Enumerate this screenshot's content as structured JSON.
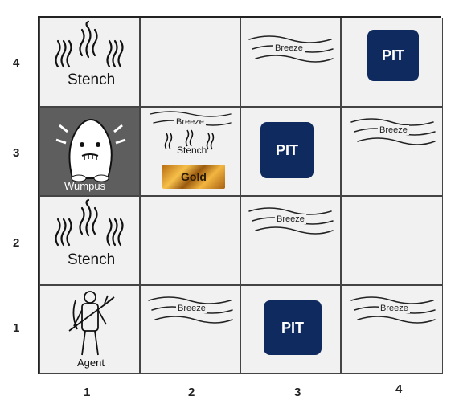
{
  "axes": {
    "rows": [
      "4",
      "3",
      "2",
      "1"
    ],
    "cols": [
      "1",
      "2",
      "3",
      "4"
    ]
  },
  "labels": {
    "stench": "Stench",
    "breeze": "Breeze",
    "pit": "PIT",
    "wumpus": "Wumpus",
    "gold": "Gold",
    "agent": "Agent"
  },
  "colors": {
    "pit": "#0e2a5e",
    "wumpus_cell": "#5e5e5e",
    "cell": "#f1f1f1"
  }
}
